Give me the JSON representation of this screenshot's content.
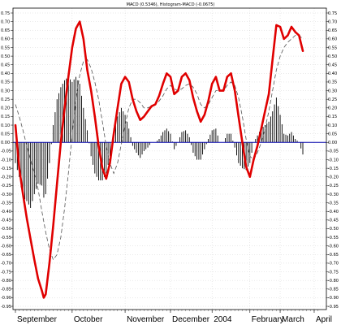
{
  "chart_data": {
    "type": "line",
    "title": "MACD (0.5346), Histogram-MACD (-0.0675)",
    "ylim": [
      -0.95,
      0.75
    ],
    "y_ticks": [
      0.75,
      0.7,
      0.65,
      0.6,
      0.55,
      0.5,
      0.45,
      0.4,
      0.35,
      0.3,
      0.25,
      0.2,
      0.15,
      0.1,
      0.05,
      0.0,
      -0.05,
      -0.1,
      -0.15,
      -0.2,
      -0.25,
      -0.3,
      -0.35,
      -0.4,
      -0.45,
      -0.5,
      -0.55,
      -0.6,
      -0.65,
      -0.7,
      -0.75,
      -0.8,
      -0.85,
      -0.9,
      -0.95
    ],
    "y_tick_labels": [
      "0.75",
      "0.70",
      "0.65",
      "0.60",
      "0.55",
      "0.50",
      "0.45",
      "0.40",
      "0.35",
      "0.30",
      "0.25",
      "0.20",
      "0.15",
      "0.10",
      "0.05",
      "0.00",
      "-0.05",
      "-0.10",
      "-0.15",
      "-0.20",
      "-0.25",
      "-0.30",
      "-0.35",
      "-0.40",
      "-0.45",
      "-0.50",
      "-0.55",
      "-0.60",
      "-0.65",
      "-0.70",
      "-0.75",
      "-0.80",
      "-0.85",
      "-0.90",
      "-0.95"
    ],
    "x_range": [
      0,
      152
    ],
    "months": [
      {
        "label": "September",
        "x": 0
      },
      {
        "label": "October",
        "x": 30
      },
      {
        "label": "November",
        "x": 58
      },
      {
        "label": "December",
        "x": 82
      },
      {
        "label": "2004",
        "x": 104
      },
      {
        "label": "February",
        "x": 124
      },
      {
        "label": "March",
        "x": 140
      },
      {
        "label": "April",
        "x": 158
      }
    ],
    "grid": true,
    "colors": {
      "macd": "#e00000",
      "signal": "#555555",
      "histogram": "#000000",
      "zero_line": "#0000aa",
      "grid": "#c8c8c8"
    },
    "series": [
      {
        "key": "macd",
        "values": [
          [
            0,
            0.1
          ],
          [
            2,
            -0.15
          ],
          [
            4,
            -0.3
          ],
          [
            6,
            -0.44
          ],
          [
            8,
            -0.56
          ],
          [
            10,
            -0.68
          ],
          [
            12,
            -0.79
          ],
          [
            14,
            -0.86
          ],
          [
            15,
            -0.9
          ],
          [
            16,
            -0.88
          ],
          [
            18,
            -0.7
          ],
          [
            20,
            -0.48
          ],
          [
            22,
            -0.24
          ],
          [
            24,
            0.0
          ],
          [
            26,
            0.2
          ],
          [
            28,
            0.38
          ],
          [
            30,
            0.55
          ],
          [
            32,
            0.66
          ],
          [
            34,
            0.7
          ],
          [
            36,
            0.6
          ],
          [
            38,
            0.42
          ],
          [
            40,
            0.3
          ],
          [
            42,
            0.15
          ],
          [
            44,
            -0.02
          ],
          [
            46,
            -0.15
          ],
          [
            48,
            -0.21
          ],
          [
            50,
            -0.12
          ],
          [
            52,
            0.05
          ],
          [
            54,
            0.2
          ],
          [
            56,
            0.34
          ],
          [
            58,
            0.38
          ],
          [
            60,
            0.35
          ],
          [
            62,
            0.25
          ],
          [
            64,
            0.18
          ],
          [
            66,
            0.13
          ],
          [
            68,
            0.15
          ],
          [
            70,
            0.18
          ],
          [
            72,
            0.21
          ],
          [
            74,
            0.22
          ],
          [
            76,
            0.27
          ],
          [
            78,
            0.34
          ],
          [
            80,
            0.4
          ],
          [
            82,
            0.38
          ],
          [
            84,
            0.28
          ],
          [
            86,
            0.3
          ],
          [
            88,
            0.38
          ],
          [
            90,
            0.4
          ],
          [
            92,
            0.36
          ],
          [
            94,
            0.26
          ],
          [
            96,
            0.18
          ],
          [
            98,
            0.12
          ],
          [
            100,
            0.16
          ],
          [
            102,
            0.24
          ],
          [
            104,
            0.34
          ],
          [
            106,
            0.38
          ],
          [
            108,
            0.3
          ],
          [
            110,
            0.3
          ],
          [
            112,
            0.38
          ],
          [
            114,
            0.4
          ],
          [
            116,
            0.3
          ],
          [
            118,
            0.15
          ],
          [
            120,
            0.0
          ],
          [
            122,
            -0.14
          ],
          [
            124,
            -0.2
          ],
          [
            126,
            -0.1
          ],
          [
            128,
            -0.02
          ],
          [
            130,
            0.08
          ],
          [
            132,
            0.18
          ],
          [
            134,
            0.28
          ],
          [
            136,
            0.48
          ],
          [
            138,
            0.68
          ],
          [
            140,
            0.67
          ],
          [
            142,
            0.6
          ],
          [
            144,
            0.62
          ],
          [
            146,
            0.67
          ],
          [
            148,
            0.64
          ],
          [
            150,
            0.62
          ],
          [
            152,
            0.53
          ]
        ]
      },
      {
        "key": "signal",
        "values": [
          [
            0,
            0.22
          ],
          [
            2,
            0.15
          ],
          [
            4,
            0.07
          ],
          [
            6,
            -0.02
          ],
          [
            8,
            -0.1
          ],
          [
            10,
            -0.18
          ],
          [
            12,
            -0.27
          ],
          [
            14,
            -0.4
          ],
          [
            16,
            -0.52
          ],
          [
            18,
            -0.62
          ],
          [
            20,
            -0.68
          ],
          [
            22,
            -0.65
          ],
          [
            24,
            -0.55
          ],
          [
            26,
            -0.38
          ],
          [
            28,
            -0.18
          ],
          [
            30,
            0.05
          ],
          [
            32,
            0.25
          ],
          [
            34,
            0.39
          ],
          [
            36,
            0.47
          ],
          [
            38,
            0.48
          ],
          [
            40,
            0.43
          ],
          [
            42,
            0.35
          ],
          [
            44,
            0.25
          ],
          [
            46,
            0.12
          ],
          [
            48,
            -0.02
          ],
          [
            50,
            -0.12
          ],
          [
            52,
            -0.18
          ],
          [
            54,
            -0.12
          ],
          [
            56,
            -0.01
          ],
          [
            58,
            0.1
          ],
          [
            60,
            0.2
          ],
          [
            62,
            0.25
          ],
          [
            64,
            0.25
          ],
          [
            66,
            0.23
          ],
          [
            68,
            0.2
          ],
          [
            70,
            0.2
          ],
          [
            72,
            0.21
          ],
          [
            74,
            0.22
          ],
          [
            76,
            0.24
          ],
          [
            78,
            0.27
          ],
          [
            80,
            0.31
          ],
          [
            82,
            0.33
          ],
          [
            84,
            0.31
          ],
          [
            86,
            0.3
          ],
          [
            88,
            0.31
          ],
          [
            90,
            0.33
          ],
          [
            92,
            0.34
          ],
          [
            94,
            0.32
          ],
          [
            96,
            0.28
          ],
          [
            98,
            0.22
          ],
          [
            100,
            0.2
          ],
          [
            102,
            0.22
          ],
          [
            104,
            0.26
          ],
          [
            106,
            0.3
          ],
          [
            108,
            0.3
          ],
          [
            110,
            0.3
          ],
          [
            112,
            0.33
          ],
          [
            114,
            0.35
          ],
          [
            116,
            0.33
          ],
          [
            118,
            0.26
          ],
          [
            120,
            0.15
          ],
          [
            122,
            0.02
          ],
          [
            124,
            -0.08
          ],
          [
            126,
            -0.1
          ],
          [
            128,
            -0.06
          ],
          [
            130,
            0.0
          ],
          [
            132,
            0.08
          ],
          [
            134,
            0.18
          ],
          [
            136,
            0.3
          ],
          [
            138,
            0.42
          ],
          [
            140,
            0.5
          ],
          [
            142,
            0.55
          ],
          [
            144,
            0.58
          ],
          [
            146,
            0.6
          ],
          [
            148,
            0.62
          ],
          [
            150,
            0.62
          ],
          [
            152,
            0.6
          ]
        ]
      },
      {
        "key": "histogram",
        "values": [
          [
            0,
            -0.12
          ],
          [
            2,
            -0.2
          ],
          [
            4,
            -0.32
          ],
          [
            6,
            -0.34
          ],
          [
            8,
            -0.38
          ],
          [
            10,
            -0.3
          ],
          [
            12,
            -0.24
          ],
          [
            14,
            -0.25
          ],
          [
            15,
            -0.32
          ],
          [
            16,
            -0.3
          ],
          [
            18,
            -0.12
          ],
          [
            20,
            0.1
          ],
          [
            22,
            0.25
          ],
          [
            24,
            0.32
          ],
          [
            26,
            0.36
          ],
          [
            28,
            0.38
          ],
          [
            30,
            0.35
          ],
          [
            32,
            0.38
          ],
          [
            34,
            0.34
          ],
          [
            36,
            0.2
          ],
          [
            38,
            0.07
          ],
          [
            40,
            -0.08
          ],
          [
            42,
            -0.18
          ],
          [
            44,
            -0.22
          ],
          [
            46,
            -0.22
          ],
          [
            48,
            -0.18
          ],
          [
            50,
            -0.08
          ],
          [
            52,
            0.08
          ],
          [
            54,
            0.15
          ],
          [
            56,
            0.2
          ],
          [
            58,
            0.16
          ],
          [
            60,
            0.08
          ],
          [
            62,
            -0.02
          ],
          [
            64,
            -0.06
          ],
          [
            66,
            -0.09
          ],
          [
            68,
            -0.05
          ],
          [
            70,
            -0.03
          ],
          [
            72,
            0.0
          ],
          [
            74,
            0.0
          ],
          [
            76,
            0.02
          ],
          [
            78,
            0.06
          ],
          [
            80,
            0.08
          ],
          [
            82,
            0.05
          ],
          [
            84,
            -0.04
          ],
          [
            86,
            0.0
          ],
          [
            88,
            0.06
          ],
          [
            90,
            0.07
          ],
          [
            92,
            0.03
          ],
          [
            94,
            -0.06
          ],
          [
            96,
            -0.1
          ],
          [
            98,
            -0.1
          ],
          [
            100,
            -0.04
          ],
          [
            102,
            0.02
          ],
          [
            104,
            0.07
          ],
          [
            106,
            0.08
          ],
          [
            108,
            0.0
          ],
          [
            110,
            0.0
          ],
          [
            112,
            0.05
          ],
          [
            114,
            0.05
          ],
          [
            116,
            -0.03
          ],
          [
            118,
            -0.12
          ],
          [
            120,
            -0.15
          ],
          [
            122,
            -0.16
          ],
          [
            124,
            -0.12
          ],
          [
            126,
            0.0
          ],
          [
            128,
            0.04
          ],
          [
            130,
            0.08
          ],
          [
            132,
            0.1
          ],
          [
            134,
            0.12
          ],
          [
            136,
            0.18
          ],
          [
            138,
            0.26
          ],
          [
            140,
            0.16
          ],
          [
            142,
            0.05
          ],
          [
            144,
            0.04
          ],
          [
            146,
            0.06
          ],
          [
            148,
            0.02
          ],
          [
            150,
            0.0
          ],
          [
            152,
            -0.07
          ]
        ]
      }
    ]
  }
}
